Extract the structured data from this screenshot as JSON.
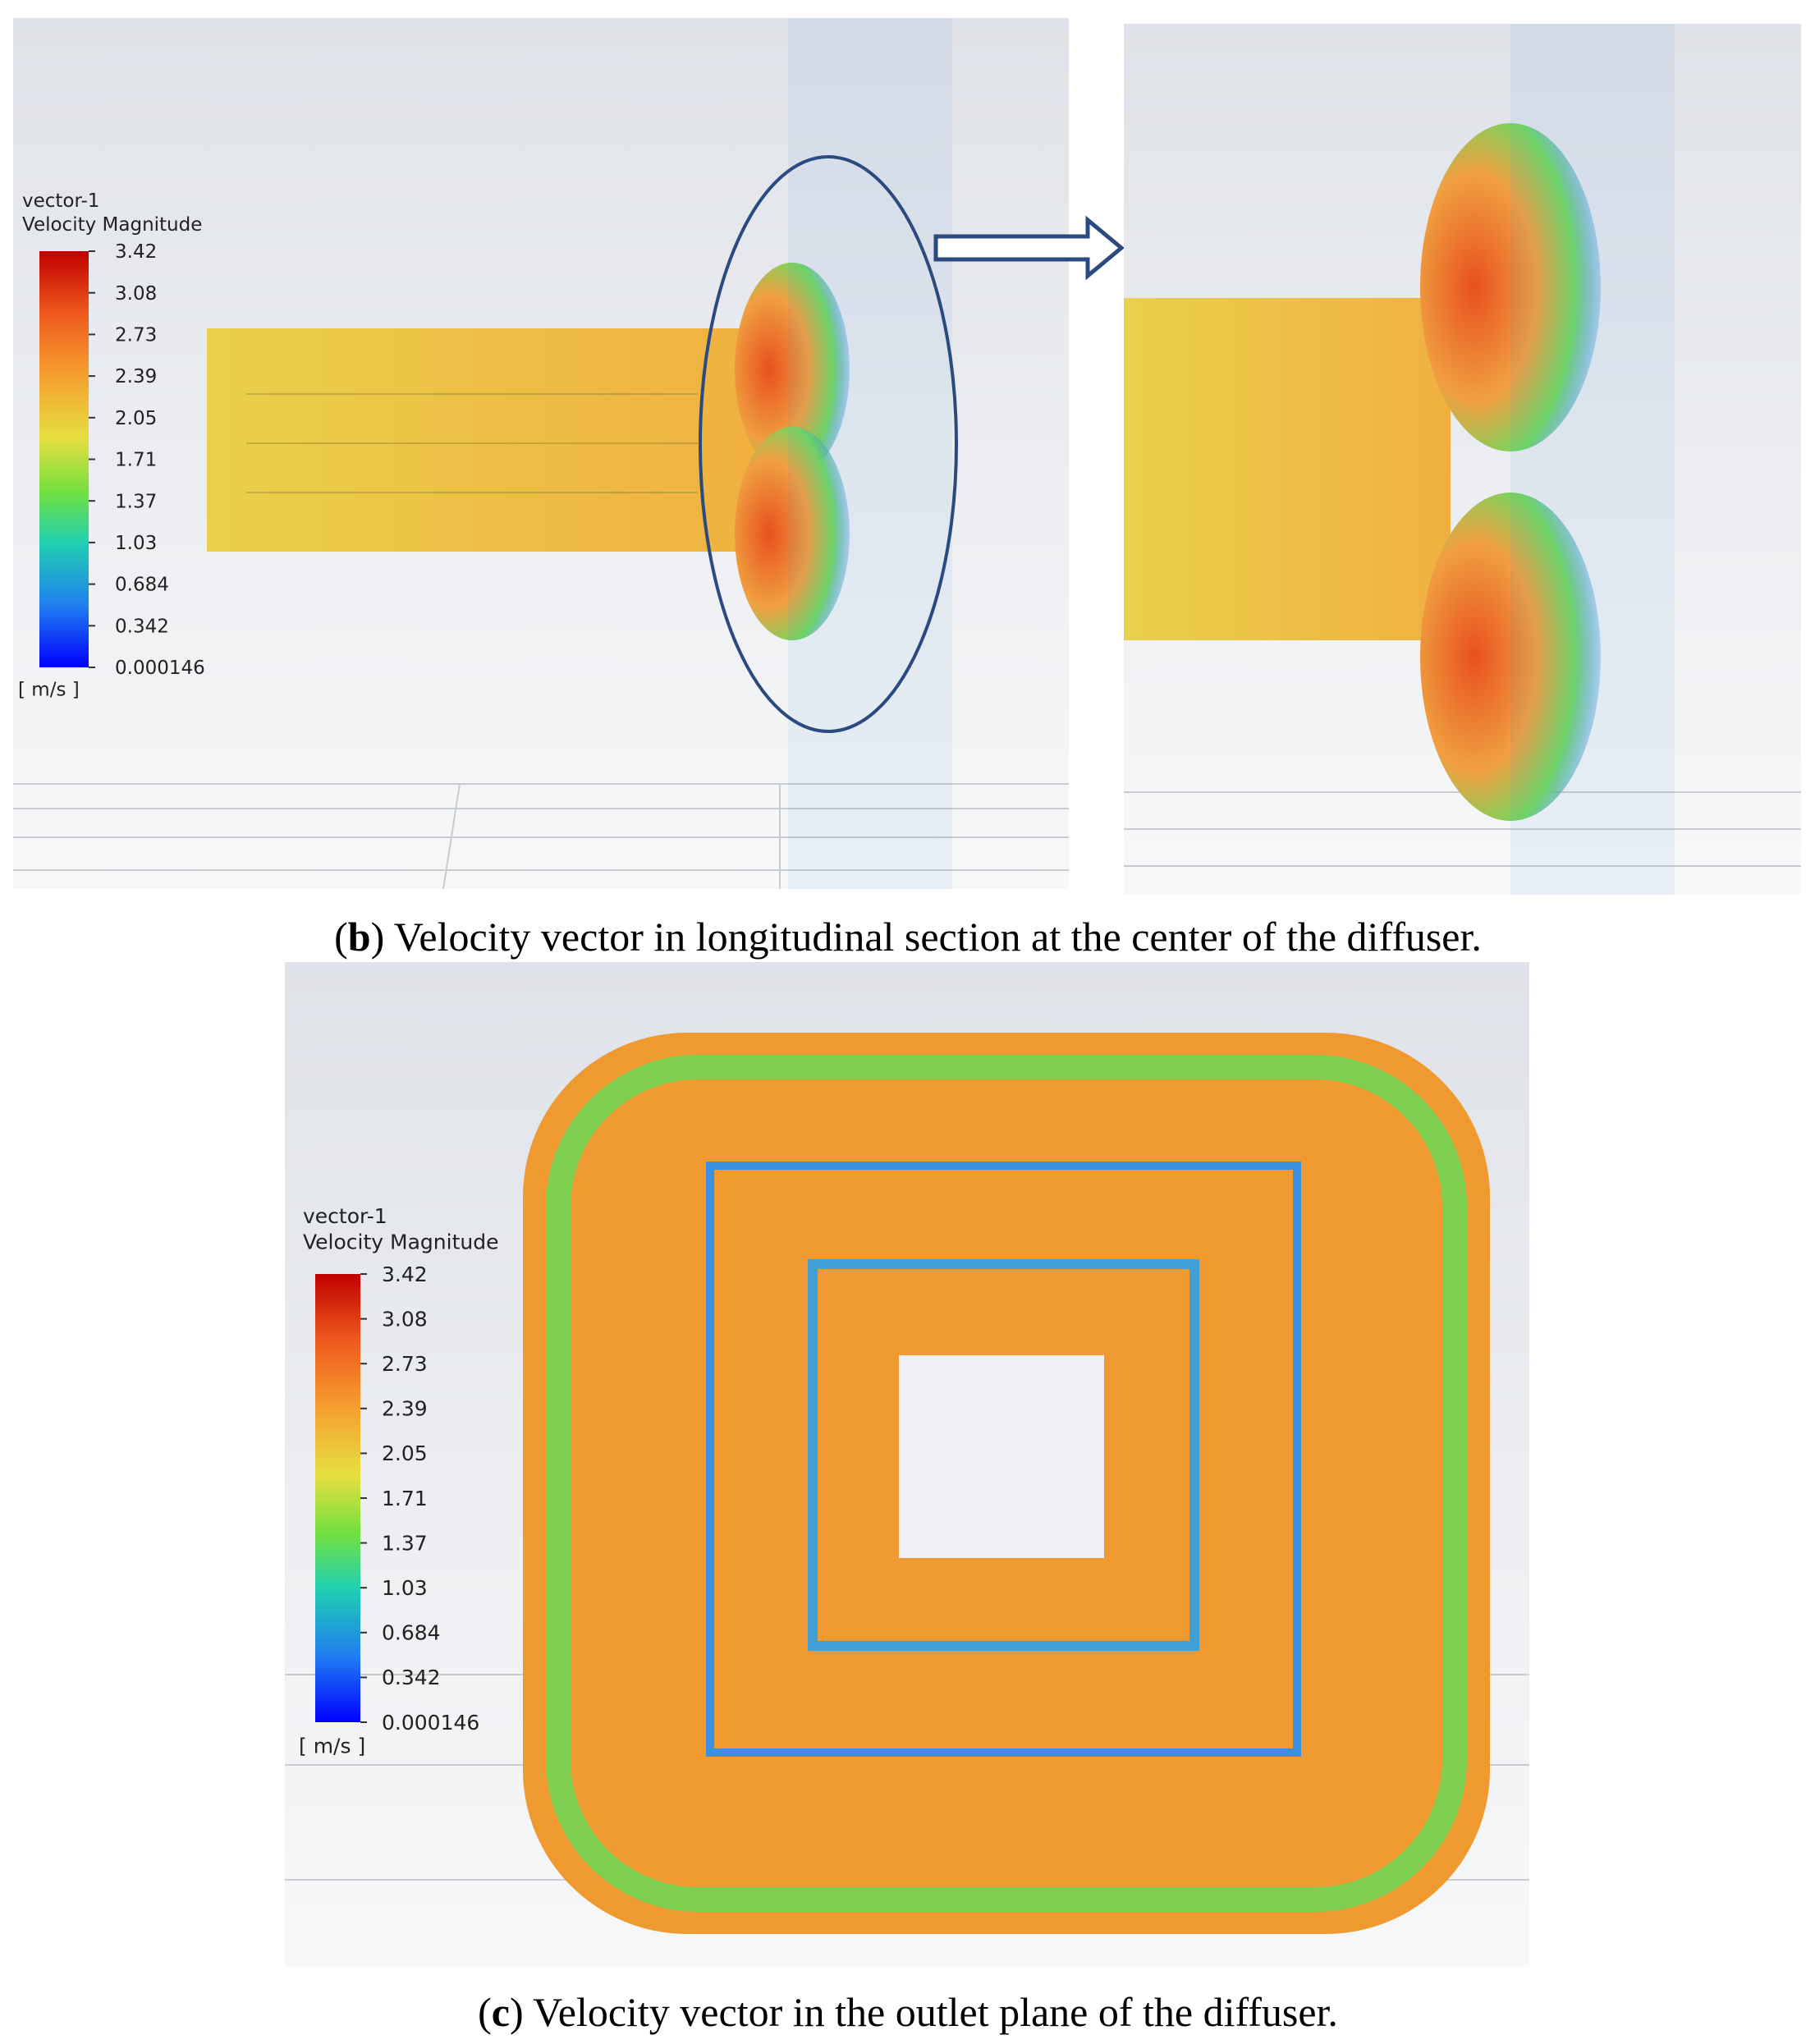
{
  "panel_b": {
    "legend": {
      "title": "vector-1",
      "quantity": "Velocity Magnitude",
      "ticks": [
        "3.42",
        "3.08",
        "2.73",
        "2.39",
        "2.05",
        "1.71",
        "1.37",
        "1.03",
        "0.684",
        "0.342",
        "0.000146"
      ],
      "unit": "[ m/s ]"
    },
    "caption": [
      "(",
      "b",
      ") Velocity vector in longitudinal section at the center of the diffuser."
    ]
  },
  "panel_c": {
    "legend": {
      "title": "vector-1",
      "quantity": "Velocity Magnitude",
      "ticks": [
        "3.42",
        "3.08",
        "2.73",
        "2.39",
        "2.05",
        "1.71",
        "1.37",
        "1.03",
        "0.684",
        "0.342",
        "0.000146"
      ],
      "unit": "[ m/s ]"
    },
    "caption": [
      "(",
      "c",
      ") Velocity vector in the outlet plane of the diffuser."
    ]
  }
}
